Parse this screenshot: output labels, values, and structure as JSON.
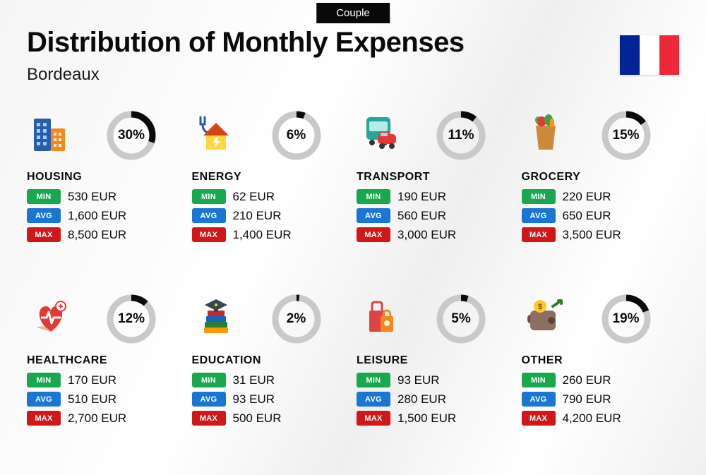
{
  "badge": "Couple",
  "title": "Distribution of Monthly Expenses",
  "city": "Bordeaux",
  "flag": {
    "c1": "#002395",
    "c2": "#ffffff",
    "c3": "#ed2939"
  },
  "colors": {
    "min": "#1aa84f",
    "avg": "#1976d2",
    "max": "#d01818",
    "donut_track": "#c9c9c9",
    "donut_fill": "#0a0a0a"
  },
  "labels": {
    "min": "MIN",
    "avg": "AVG",
    "max": "MAX"
  },
  "donut": {
    "r": 30,
    "stroke": 9
  },
  "categories": [
    {
      "name": "HOUSING",
      "pct": 30,
      "min": "530 EUR",
      "avg": "1,600 EUR",
      "max": "8,500 EUR",
      "icon": "buildings"
    },
    {
      "name": "ENERGY",
      "pct": 6,
      "min": "62 EUR",
      "avg": "210 EUR",
      "max": "1,400 EUR",
      "icon": "energy"
    },
    {
      "name": "TRANSPORT",
      "pct": 11,
      "min": "190 EUR",
      "avg": "560 EUR",
      "max": "3,000 EUR",
      "icon": "transport"
    },
    {
      "name": "GROCERY",
      "pct": 15,
      "min": "220 EUR",
      "avg": "650 EUR",
      "max": "3,500 EUR",
      "icon": "grocery"
    },
    {
      "name": "HEALTHCARE",
      "pct": 12,
      "min": "170 EUR",
      "avg": "510 EUR",
      "max": "2,700 EUR",
      "icon": "healthcare"
    },
    {
      "name": "EDUCATION",
      "pct": 2,
      "min": "31 EUR",
      "avg": "93 EUR",
      "max": "500 EUR",
      "icon": "education"
    },
    {
      "name": "LEISURE",
      "pct": 5,
      "min": "93 EUR",
      "avg": "280 EUR",
      "max": "1,500 EUR",
      "icon": "leisure"
    },
    {
      "name": "OTHER",
      "pct": 19,
      "min": "260 EUR",
      "avg": "790 EUR",
      "max": "4,200 EUR",
      "icon": "other"
    }
  ]
}
